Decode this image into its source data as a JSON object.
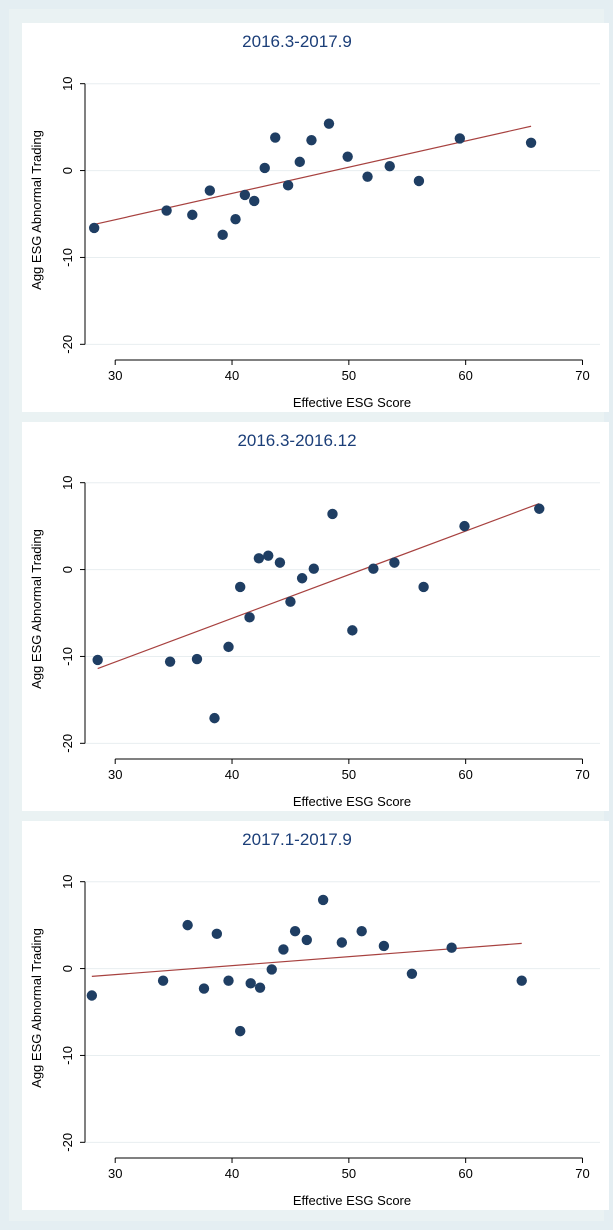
{
  "chart_data": [
    {
      "type": "scatter",
      "title": "2016.3-2017.9",
      "xlabel": "Effective ESG Score",
      "ylabel": "Agg ESG Abnormal Trading",
      "xlim": [
        27.5,
        71.5
      ],
      "ylim": [
        -21,
        11
      ],
      "xticks": [
        30,
        40,
        50,
        60,
        70
      ],
      "yticks": [
        10,
        0,
        -10,
        -20
      ],
      "grid": "horizontal",
      "colors": {
        "points": "#1f3e63",
        "fit_line": "#a7413f",
        "grid": "#e8eef0",
        "title": "#1b3e78"
      },
      "points": [
        {
          "x": 28.2,
          "y": -6.6
        },
        {
          "x": 34.4,
          "y": -4.6
        },
        {
          "x": 36.6,
          "y": -5.1
        },
        {
          "x": 38.1,
          "y": -2.3
        },
        {
          "x": 39.2,
          "y": -7.4
        },
        {
          "x": 40.3,
          "y": -5.6
        },
        {
          "x": 41.1,
          "y": -2.8
        },
        {
          "x": 41.9,
          "y": -3.5
        },
        {
          "x": 42.8,
          "y": 0.3
        },
        {
          "x": 43.7,
          "y": 3.8
        },
        {
          "x": 44.8,
          "y": -1.7
        },
        {
          "x": 45.8,
          "y": 1.0
        },
        {
          "x": 46.8,
          "y": 3.5
        },
        {
          "x": 48.3,
          "y": 5.4
        },
        {
          "x": 49.9,
          "y": 1.6
        },
        {
          "x": 51.6,
          "y": -0.7
        },
        {
          "x": 53.5,
          "y": 0.5
        },
        {
          "x": 56.0,
          "y": -1.2
        },
        {
          "x": 59.5,
          "y": 3.7
        },
        {
          "x": 65.6,
          "y": 3.2
        }
      ],
      "fit_line": [
        {
          "x": 28.2,
          "y": -6.2
        },
        {
          "x": 65.6,
          "y": 5.1
        }
      ]
    },
    {
      "type": "scatter",
      "title": "2016.3-2016.12",
      "xlabel": "Effective ESG Score",
      "ylabel": "Agg ESG Abnormal Trading",
      "xlim": [
        27.5,
        71.5
      ],
      "ylim": [
        -21,
        11
      ],
      "xticks": [
        30,
        40,
        50,
        60,
        70
      ],
      "yticks": [
        10,
        0,
        -10,
        -20
      ],
      "grid": "horizontal",
      "colors": {
        "points": "#1f3e63",
        "fit_line": "#a7413f",
        "grid": "#e8eef0",
        "title": "#1b3e78"
      },
      "points": [
        {
          "x": 28.5,
          "y": -10.4
        },
        {
          "x": 34.7,
          "y": -10.6
        },
        {
          "x": 37.0,
          "y": -10.3
        },
        {
          "x": 38.5,
          "y": -17.1
        },
        {
          "x": 39.7,
          "y": -8.9
        },
        {
          "x": 40.7,
          "y": -2.0
        },
        {
          "x": 41.5,
          "y": -5.5
        },
        {
          "x": 42.3,
          "y": 1.3
        },
        {
          "x": 43.1,
          "y": 1.6
        },
        {
          "x": 44.1,
          "y": 0.8
        },
        {
          "x": 45.0,
          "y": -3.7
        },
        {
          "x": 46.0,
          "y": -1.0
        },
        {
          "x": 47.0,
          "y": 0.1
        },
        {
          "x": 48.6,
          "y": 6.4
        },
        {
          "x": 50.3,
          "y": -7.0
        },
        {
          "x": 52.1,
          "y": 0.1
        },
        {
          "x": 53.9,
          "y": 0.8
        },
        {
          "x": 56.4,
          "y": -2.0
        },
        {
          "x": 59.9,
          "y": 5.0
        },
        {
          "x": 66.3,
          "y": 7.0
        }
      ],
      "fit_line": [
        {
          "x": 28.5,
          "y": -11.4
        },
        {
          "x": 66.3,
          "y": 7.6
        }
      ]
    },
    {
      "type": "scatter",
      "title": "2017.1-2017.9",
      "xlabel": "Effective ESG Score",
      "ylabel": "Agg ESG Abnormal Trading",
      "xlim": [
        27.5,
        71.5
      ],
      "ylim": [
        -21,
        11
      ],
      "xticks": [
        30,
        40,
        50,
        60,
        70
      ],
      "yticks": [
        10,
        0,
        -10,
        -20
      ],
      "grid": "horizontal",
      "colors": {
        "points": "#1f3e63",
        "fit_line": "#a7413f",
        "grid": "#e8eef0",
        "title": "#1b3e78"
      },
      "points": [
        {
          "x": 28.0,
          "y": -3.1
        },
        {
          "x": 34.1,
          "y": -1.4
        },
        {
          "x": 36.2,
          "y": 5.0
        },
        {
          "x": 37.6,
          "y": -2.3
        },
        {
          "x": 38.7,
          "y": 4.0
        },
        {
          "x": 39.7,
          "y": -1.4
        },
        {
          "x": 40.7,
          "y": -7.2
        },
        {
          "x": 41.6,
          "y": -1.7
        },
        {
          "x": 42.4,
          "y": -2.2
        },
        {
          "x": 43.4,
          "y": -0.1
        },
        {
          "x": 44.4,
          "y": 2.2
        },
        {
          "x": 45.4,
          "y": 4.3
        },
        {
          "x": 46.4,
          "y": 3.3
        },
        {
          "x": 47.8,
          "y": 7.9
        },
        {
          "x": 49.4,
          "y": 3.0
        },
        {
          "x": 51.1,
          "y": 4.3
        },
        {
          "x": 53.0,
          "y": 2.6
        },
        {
          "x": 55.4,
          "y": -0.6
        },
        {
          "x": 58.8,
          "y": 2.4
        },
        {
          "x": 64.8,
          "y": -1.4
        }
      ],
      "fit_line": [
        {
          "x": 28.0,
          "y": -0.9
        },
        {
          "x": 64.8,
          "y": 2.9
        }
      ]
    }
  ]
}
